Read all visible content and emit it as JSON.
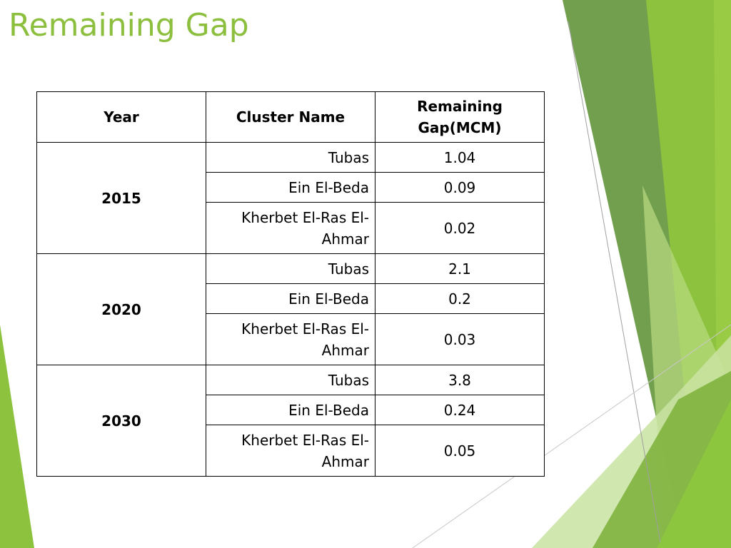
{
  "slide": {
    "title": "Remaining Gap"
  },
  "table": {
    "headers": {
      "year": "Year",
      "cluster": "Cluster Name",
      "gap": "Remaining Gap(MCM)"
    },
    "groups": [
      {
        "year": "2015",
        "rows": [
          {
            "cluster": "Tubas",
            "gap": "1.04"
          },
          {
            "cluster": "Ein El-Beda",
            "gap": "0.09"
          },
          {
            "cluster": "Kherbet El-Ras El-Ahmar",
            "gap": "0.02"
          }
        ]
      },
      {
        "year": "2020",
        "rows": [
          {
            "cluster": "Tubas",
            "gap": "2.1"
          },
          {
            "cluster": "Ein El-Beda",
            "gap": "0.2"
          },
          {
            "cluster": "Kherbet El-Ras El-Ahmar",
            "gap": "0.03"
          }
        ]
      },
      {
        "year": "2030",
        "rows": [
          {
            "cluster": "Tubas",
            "gap": "3.8"
          },
          {
            "cluster": "Ein El-Beda",
            "gap": "0.24"
          },
          {
            "cluster": "Kherbet El-Ras El-Ahmar",
            "gap": "0.05"
          }
        ]
      }
    ]
  },
  "theme": {
    "title_color": "#8DBF3E",
    "accent_dark": "#5C8F3A",
    "accent_light": "#C5E19B"
  }
}
